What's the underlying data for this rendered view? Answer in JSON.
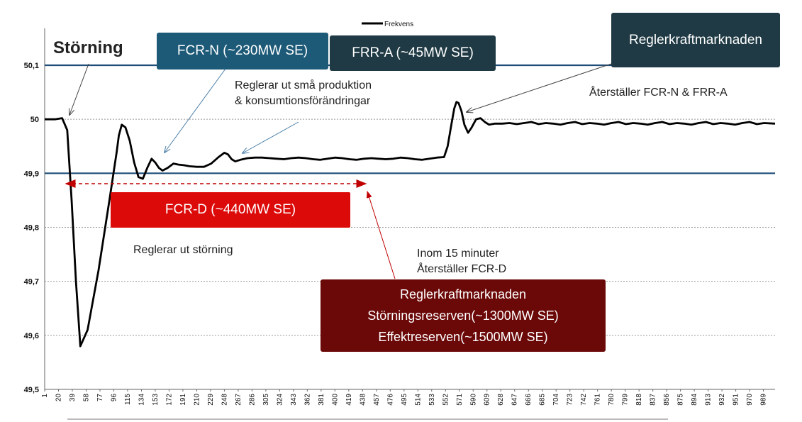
{
  "chart_data": {
    "type": "line",
    "legend": {
      "label": "Frekvens",
      "placement": "top-center"
    },
    "ylim": [
      49.5,
      50.12
    ],
    "yticks": [
      "49,5",
      "49,6",
      "49,7",
      "49,8",
      "49,9",
      "50",
      "50,1"
    ],
    "ytick_values": [
      49.5,
      49.6,
      49.7,
      49.8,
      49.9,
      50.0,
      50.1
    ],
    "x_categories": [
      "1",
      "20",
      "39",
      "58",
      "77",
      "96",
      "115",
      "134",
      "153",
      "172",
      "191",
      "210",
      "229",
      "248",
      "267",
      "286",
      "305",
      "324",
      "343",
      "362",
      "381",
      "400",
      "419",
      "438",
      "457",
      "476",
      "495",
      "514",
      "533",
      "552",
      "571",
      "590",
      "609",
      "628",
      "647",
      "666",
      "685",
      "704",
      "723",
      "742",
      "761",
      "780",
      "799",
      "818",
      "837",
      "856",
      "875",
      "894",
      "913",
      "932",
      "951",
      "970",
      "989"
    ],
    "xlim": [
      1,
      1005
    ],
    "reference_lines": [
      50.1,
      49.9
    ],
    "series": [
      {
        "name": "Frekvens",
        "x": [
          1,
          15,
          25,
          32,
          38,
          44,
          50,
          60,
          75,
          90,
          100,
          103,
          107,
          112,
          118,
          124,
          130,
          136,
          142,
          148,
          153,
          158,
          163,
          170,
          178,
          185,
          192,
          200,
          210,
          220,
          230,
          240,
          248,
          253,
          258,
          263,
          270,
          280,
          290,
          300,
          310,
          320,
          330,
          340,
          350,
          360,
          370,
          380,
          390,
          400,
          410,
          420,
          430,
          440,
          450,
          460,
          470,
          480,
          490,
          500,
          510,
          520,
          530,
          540,
          550,
          555,
          560,
          564,
          567,
          570,
          574,
          578,
          583,
          588,
          594,
          600,
          606,
          612,
          620,
          630,
          640,
          650,
          660,
          670,
          680,
          690,
          700,
          710,
          720,
          730,
          740,
          750,
          760,
          770,
          780,
          790,
          800,
          810,
          820,
          830,
          840,
          850,
          860,
          870,
          880,
          890,
          900,
          910,
          920,
          930,
          940,
          950,
          960,
          970,
          980,
          990,
          1005
        ],
        "y": [
          50.0,
          50.0,
          50.002,
          49.98,
          49.85,
          49.7,
          49.58,
          49.61,
          49.72,
          49.85,
          49.94,
          49.97,
          49.99,
          49.985,
          49.96,
          49.92,
          49.893,
          49.89,
          49.91,
          49.927,
          49.92,
          49.91,
          49.905,
          49.91,
          49.918,
          49.916,
          49.915,
          49.913,
          49.912,
          49.912,
          49.918,
          49.93,
          49.938,
          49.935,
          49.926,
          49.922,
          49.925,
          49.928,
          49.929,
          49.929,
          49.928,
          49.927,
          49.926,
          49.928,
          49.929,
          49.928,
          49.926,
          49.925,
          49.927,
          49.929,
          49.928,
          49.926,
          49.925,
          49.927,
          49.928,
          49.927,
          49.926,
          49.927,
          49.929,
          49.928,
          49.926,
          49.925,
          49.927,
          49.929,
          49.93,
          49.95,
          49.99,
          50.02,
          50.032,
          50.03,
          50.015,
          49.99,
          49.975,
          49.985,
          50.0,
          50.002,
          49.995,
          49.99,
          49.992,
          49.992,
          49.993,
          49.991,
          49.993,
          49.995,
          49.991,
          49.993,
          49.992,
          49.99,
          49.993,
          49.995,
          49.991,
          49.993,
          49.992,
          49.99,
          49.993,
          49.995,
          49.991,
          49.993,
          49.992,
          49.99,
          49.993,
          49.995,
          49.991,
          49.993,
          49.992,
          49.99,
          49.993,
          49.995,
          49.991,
          49.993,
          49.992,
          49.99,
          49.993,
          49.995,
          49.991,
          49.993,
          49.992
        ]
      }
    ]
  },
  "labels": {
    "storning": "Störning",
    "fcrn": "FCR-N (~230MW SE)",
    "frra": "FRR-A (~45MW SE)",
    "regler_top": "Reglerkraftmarknaden",
    "reglerar_sma_1": "Reglerar ut små produktion",
    "reglerar_sma_2": "& konsumtionsförändringar",
    "aterstaller_fcrn": "Återställer FCR-N & FRR-A",
    "fcrd": "FCR-D (~440MW SE)",
    "reglerar_storning": "Reglerar ut störning",
    "inom_1": "Inom 15 minuter",
    "inom_2": "Återställer FCR-D",
    "regler_bottom_1": "Reglerkraftmarknaden",
    "regler_bottom_2": "Störningsreserven(~1300MW SE)",
    "regler_bottom_3": "Effektreserven(~1500MW SE)"
  },
  "colors": {
    "line": "#000000",
    "ref_line": "#1f4e79",
    "fcrn_box": "#1d5a78",
    "frra_box": "#1f3a44",
    "regler_box": "#1f3a44",
    "fcrd_box": "#dd0a0a",
    "regler_bottom_box": "#6b0808",
    "dashed_arrow": "#c00000"
  }
}
